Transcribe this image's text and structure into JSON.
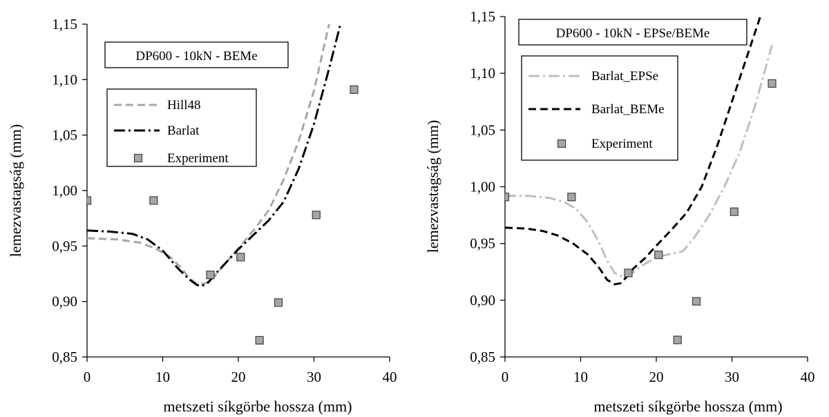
{
  "chart_data": [
    {
      "type": "line",
      "title": "DP600 - 10kN - BEMe",
      "xlabel": "metszeti síkgörbe hossza (mm)",
      "ylabel": "lemezvastagság (mm)",
      "xlim": [
        0,
        40
      ],
      "ylim": [
        0.85,
        1.15
      ],
      "x_ticks": [
        "0",
        "10",
        "20",
        "30",
        "40"
      ],
      "y_ticks": [
        "0,85",
        "0,90",
        "0,95",
        "1,00",
        "1,05",
        "1,10",
        "1,15"
      ],
      "grid": false,
      "legend_position": "left-middle",
      "series": [
        {
          "name": "Hill48",
          "style": "dashed",
          "color": "#a6a6a6",
          "x": [
            0,
            4,
            7,
            9,
            11,
            12.5,
            13.5,
            14.5,
            15.5,
            16.5,
            18,
            20,
            22,
            24,
            26,
            28,
            30,
            31,
            32
          ],
          "y": [
            0.957,
            0.956,
            0.953,
            0.948,
            0.94,
            0.93,
            0.921,
            0.916,
            0.916,
            0.92,
            0.932,
            0.948,
            0.964,
            0.982,
            1.01,
            1.045,
            1.09,
            1.12,
            1.15
          ]
        },
        {
          "name": "Barlat",
          "style": "dash-dot",
          "color": "#000000",
          "x": [
            0,
            3,
            6,
            8,
            10,
            12,
            13.5,
            14.5,
            15.2,
            16,
            17,
            18.5,
            20,
            22,
            24,
            26,
            28,
            30,
            32,
            33.5
          ],
          "y": [
            0.964,
            0.963,
            0.961,
            0.956,
            0.946,
            0.93,
            0.92,
            0.915,
            0.914,
            0.917,
            0.925,
            0.936,
            0.947,
            0.96,
            0.973,
            0.99,
            1.02,
            1.06,
            1.11,
            1.15
          ]
        },
        {
          "name": "Experiment",
          "style": "markers",
          "color": "#a6a6a6",
          "x": [
            0,
            8.8,
            16.3,
            20.3,
            22.8,
            25.3,
            30.3,
            35.3
          ],
          "y": [
            0.991,
            0.991,
            0.924,
            0.94,
            0.865,
            0.899,
            0.978,
            1.091
          ]
        }
      ]
    },
    {
      "type": "line",
      "title": "DP600 - 10kN - EPSe/BEMe",
      "xlabel": "metszeti síkgörbe hossza (mm)",
      "ylabel": "lemezvastagság (mm)",
      "xlim": [
        0,
        40
      ],
      "ylim": [
        0.85,
        1.15
      ],
      "x_ticks": [
        "0",
        "10",
        "20",
        "30",
        "40"
      ],
      "y_ticks": [
        "0,85",
        "0,90",
        "0,95",
        "1,00",
        "1,05",
        "1,10",
        "1,15"
      ],
      "grid": false,
      "legend_position": "left-top",
      "series": [
        {
          "name": "Barlat_EPSe",
          "style": "dash-dot",
          "color": "#bfbfbf",
          "x": [
            0,
            3,
            6,
            8,
            9.5,
            11,
            12.5,
            13.5,
            14.5,
            15.5,
            16.5,
            18,
            20,
            22,
            23.5,
            25,
            27,
            29,
            31,
            33,
            35.3
          ],
          "y": [
            0.992,
            0.992,
            0.99,
            0.986,
            0.98,
            0.968,
            0.95,
            0.935,
            0.924,
            0.921,
            0.922,
            0.93,
            0.938,
            0.941,
            0.943,
            0.955,
            0.975,
            1.0,
            1.03,
            1.07,
            1.125
          ]
        },
        {
          "name": "Barlat_BEMe",
          "style": "dashed",
          "color": "#000000",
          "x": [
            0,
            3,
            5,
            7,
            9,
            11,
            12.5,
            13.5,
            14.5,
            15.3,
            16,
            17,
            18.5,
            20,
            22,
            24,
            26,
            28,
            30,
            32,
            34
          ],
          "y": [
            0.964,
            0.963,
            0.961,
            0.957,
            0.95,
            0.94,
            0.928,
            0.918,
            0.914,
            0.915,
            0.92,
            0.928,
            0.937,
            0.948,
            0.962,
            0.977,
            1.0,
            1.035,
            1.075,
            1.115,
            1.155
          ]
        },
        {
          "name": "Experiment",
          "style": "markers",
          "color": "#a6a6a6",
          "x": [
            0,
            8.8,
            16.3,
            20.3,
            22.8,
            25.3,
            30.3,
            35.3
          ],
          "y": [
            0.991,
            0.991,
            0.924,
            0.94,
            0.865,
            0.899,
            0.978,
            1.091
          ]
        }
      ]
    }
  ]
}
